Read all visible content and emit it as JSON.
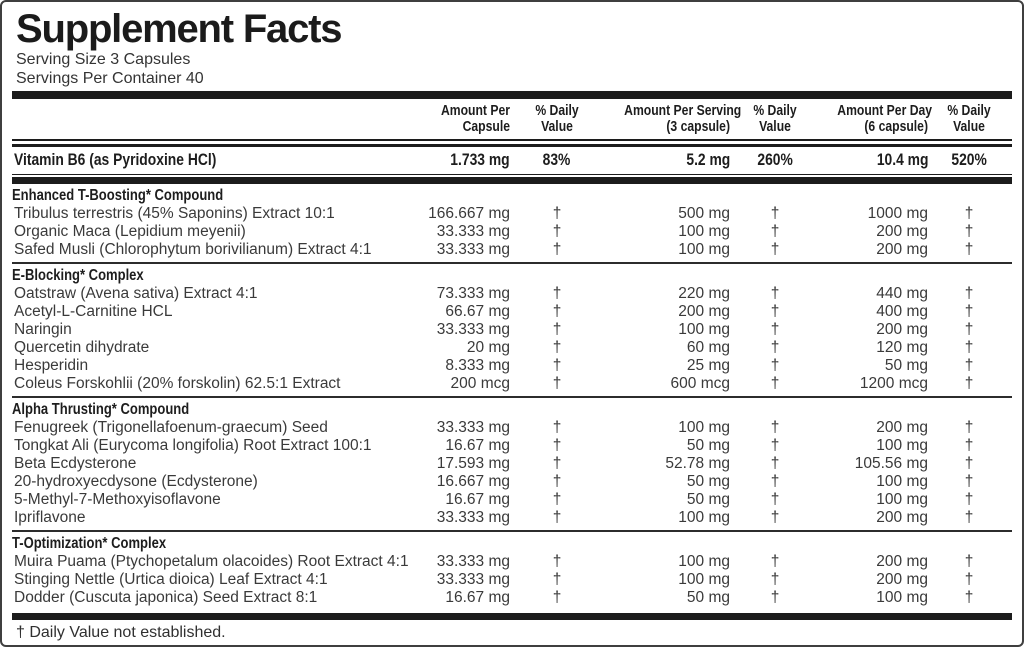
{
  "header": {
    "title": "Supplement Facts",
    "serving_size": "Serving Size 3 Capsules",
    "servings_per_container": "Servings Per Container 40"
  },
  "columns": [
    {
      "line1": "",
      "line2": ""
    },
    {
      "line1": "Amount Per",
      "line2": "Capsule"
    },
    {
      "line1": "% Daily",
      "line2": "Value"
    },
    {
      "line1": "Amount Per Serving",
      "line2": "(3 capsule)"
    },
    {
      "line1": "% Daily",
      "line2": "Value"
    },
    {
      "line1": "Amount Per Day",
      "line2": "(6 capsule)"
    },
    {
      "line1": "% Daily",
      "line2": "Value"
    }
  ],
  "vitamin_row": {
    "name": "Vitamin B6 (as Pyridoxine HCl)",
    "per_capsule": "1.733 mg",
    "dv_capsule": "83%",
    "per_serving": "5.2 mg",
    "dv_serving": "260%",
    "per_day": "10.4 mg",
    "dv_day": "520%"
  },
  "sections": [
    {
      "id": "enhanced-t-boosting-compound",
      "title": "Enhanced T-Boosting* Compound",
      "rows": [
        {
          "name": "Tribulus terrestris (45% Saponins) Extract 10:1",
          "per_capsule": "166.667 mg",
          "dv_capsule": "†",
          "per_serving": "500 mg",
          "dv_serving": "†",
          "per_day": "1000 mg",
          "dv_day": "†"
        },
        {
          "name": "Organic Maca (Lepidium meyenii)",
          "per_capsule": "33.333 mg",
          "dv_capsule": "†",
          "per_serving": "100 mg",
          "dv_serving": "†",
          "per_day": "200 mg",
          "dv_day": "†"
        },
        {
          "name": "Safed Musli (Chlorophytum borivilianum) Extract 4:1",
          "per_capsule": "33.333 mg",
          "dv_capsule": "†",
          "per_serving": "100 mg",
          "dv_serving": "†",
          "per_day": "200 mg",
          "dv_day": "†"
        }
      ]
    },
    {
      "id": "e-blocking-complex",
      "title": "E-Blocking* Complex",
      "rows": [
        {
          "name": "Oatstraw (Avena sativa) Extract 4:1",
          "per_capsule": "73.333 mg",
          "dv_capsule": "†",
          "per_serving": "220 mg",
          "dv_serving": "†",
          "per_day": "440 mg",
          "dv_day": "†"
        },
        {
          "name": "Acetyl-L-Carnitine HCL",
          "per_capsule": "66.67 mg",
          "dv_capsule": "†",
          "per_serving": "200 mg",
          "dv_serving": "†",
          "per_day": "400 mg",
          "dv_day": "†"
        },
        {
          "name": "Naringin",
          "per_capsule": "33.333 mg",
          "dv_capsule": "†",
          "per_serving": "100 mg",
          "dv_serving": "†",
          "per_day": "200 mg",
          "dv_day": "†"
        },
        {
          "name": "Quercetin dihydrate",
          "per_capsule": "20 mg",
          "dv_capsule": "†",
          "per_serving": "60 mg",
          "dv_serving": "†",
          "per_day": "120 mg",
          "dv_day": "†"
        },
        {
          "name": "Hesperidin",
          "per_capsule": "8.333 mg",
          "dv_capsule": "†",
          "per_serving": "25 mg",
          "dv_serving": "†",
          "per_day": "50 mg",
          "dv_day": "†"
        },
        {
          "name": "Coleus Forskohlii (20% forskolin) 62.5:1 Extract",
          "per_capsule": "200 mcg",
          "dv_capsule": "†",
          "per_serving": "600 mcg",
          "dv_serving": "†",
          "per_day": "1200 mcg",
          "dv_day": "†"
        }
      ]
    },
    {
      "id": "alpha-thrusting-compound",
      "title": "Alpha Thrusting* Compound",
      "rows": [
        {
          "name": "Fenugreek (Trigonellafoenum-graecum) Seed",
          "per_capsule": "33.333 mg",
          "dv_capsule": "†",
          "per_serving": "100 mg",
          "dv_serving": "†",
          "per_day": "200 mg",
          "dv_day": "†"
        },
        {
          "name": "Tongkat Ali (Eurycoma longifolia) Root Extract 100:1",
          "per_capsule": "16.67 mg",
          "dv_capsule": "†",
          "per_serving": "50 mg",
          "dv_serving": "†",
          "per_day": "100 mg",
          "dv_day": "†"
        },
        {
          "name": "Beta Ecdysterone",
          "per_capsule": "17.593 mg",
          "dv_capsule": "†",
          "per_serving": "52.78 mg",
          "dv_serving": "†",
          "per_day": "105.56 mg",
          "dv_day": "†"
        },
        {
          "name": "20-hydroxyecdysone (Ecdysterone)",
          "per_capsule": "16.667 mg",
          "dv_capsule": "†",
          "per_serving": "50 mg",
          "dv_serving": "†",
          "per_day": "100 mg",
          "dv_day": "†"
        },
        {
          "name": "5-Methyl-7-Methoxyisoflavone",
          "per_capsule": "16.67 mg",
          "dv_capsule": "†",
          "per_serving": "50 mg",
          "dv_serving": "†",
          "per_day": "100 mg",
          "dv_day": "†"
        },
        {
          "name": "Ipriflavone",
          "per_capsule": "33.333 mg",
          "dv_capsule": "†",
          "per_serving": "100 mg",
          "dv_serving": "†",
          "per_day": "200 mg",
          "dv_day": "†"
        }
      ]
    },
    {
      "id": "t-optimization-complex",
      "title": "T-Optimization* Complex",
      "rows": [
        {
          "name": "Muira Puama (Ptychopetalum olacoides) Root Extract 4:1",
          "per_capsule": "33.333 mg",
          "dv_capsule": "†",
          "per_serving": "100 mg",
          "dv_serving": "†",
          "per_day": "200 mg",
          "dv_day": "†"
        },
        {
          "name": "Stinging Nettle (Urtica dioica) Leaf Extract 4:1",
          "per_capsule": "33.333 mg",
          "dv_capsule": "†",
          "per_serving": "100 mg",
          "dv_serving": "†",
          "per_day": "200 mg",
          "dv_day": "†"
        },
        {
          "name": "Dodder (Cuscuta japonica) Seed Extract 8:1",
          "per_capsule": "16.67 mg",
          "dv_capsule": "†",
          "per_serving": "50 mg",
          "dv_serving": "†",
          "per_day": "100 mg",
          "dv_day": "†"
        }
      ]
    }
  ],
  "footnote": "† Daily Value not established.",
  "colors": {
    "text": "#1d1d1d",
    "body_text": "#3a3a3a",
    "bar": "#1c1c1c",
    "background": "#ffffff"
  }
}
